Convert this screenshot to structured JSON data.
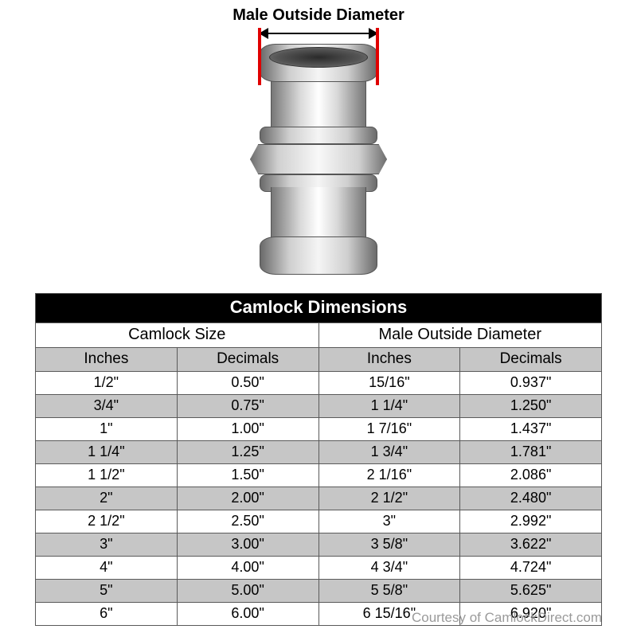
{
  "diagram": {
    "label": "Male Outside Diameter",
    "marker_color": "#e00000"
  },
  "table": {
    "title": "Camlock Dimensions",
    "groups": [
      "Camlock Size",
      "Male Outside Diameter"
    ],
    "subheaders": [
      "Inches",
      "Decimals",
      "Inches",
      "Decimals"
    ],
    "header_bg": "#000000",
    "header_fg": "#ffffff",
    "sub_bg": "#c6c6c6",
    "row_alt_bg": "#c6c6c6",
    "row_bg": "#ffffff",
    "border_color": "#5a5a5a",
    "rows": [
      [
        "1/2\"",
        "0.50\"",
        "15/16\"",
        "0.937\""
      ],
      [
        "3/4\"",
        "0.75\"",
        "1 1/4\"",
        "1.250\""
      ],
      [
        "1\"",
        "1.00\"",
        "1 7/16\"",
        "1.437\""
      ],
      [
        "1 1/4\"",
        "1.25\"",
        "1 3/4\"",
        "1.781\""
      ],
      [
        "1 1/2\"",
        "1.50\"",
        "2 1/16\"",
        "2.086\""
      ],
      [
        "2\"",
        "2.00\"",
        "2 1/2\"",
        "2.480\""
      ],
      [
        "2 1/2\"",
        "2.50\"",
        "3\"",
        "2.992\""
      ],
      [
        "3\"",
        "3.00\"",
        "3 5/8\"",
        "3.622\""
      ],
      [
        "4\"",
        "4.00\"",
        "4 3/4\"",
        "4.724\""
      ],
      [
        "5\"",
        "5.00\"",
        "5 5/8\"",
        "5.625\""
      ],
      [
        "6\"",
        "6.00\"",
        "6 15/16\"",
        "6.920\""
      ]
    ]
  },
  "credit": "Courtesy of CamlockDirect.com"
}
